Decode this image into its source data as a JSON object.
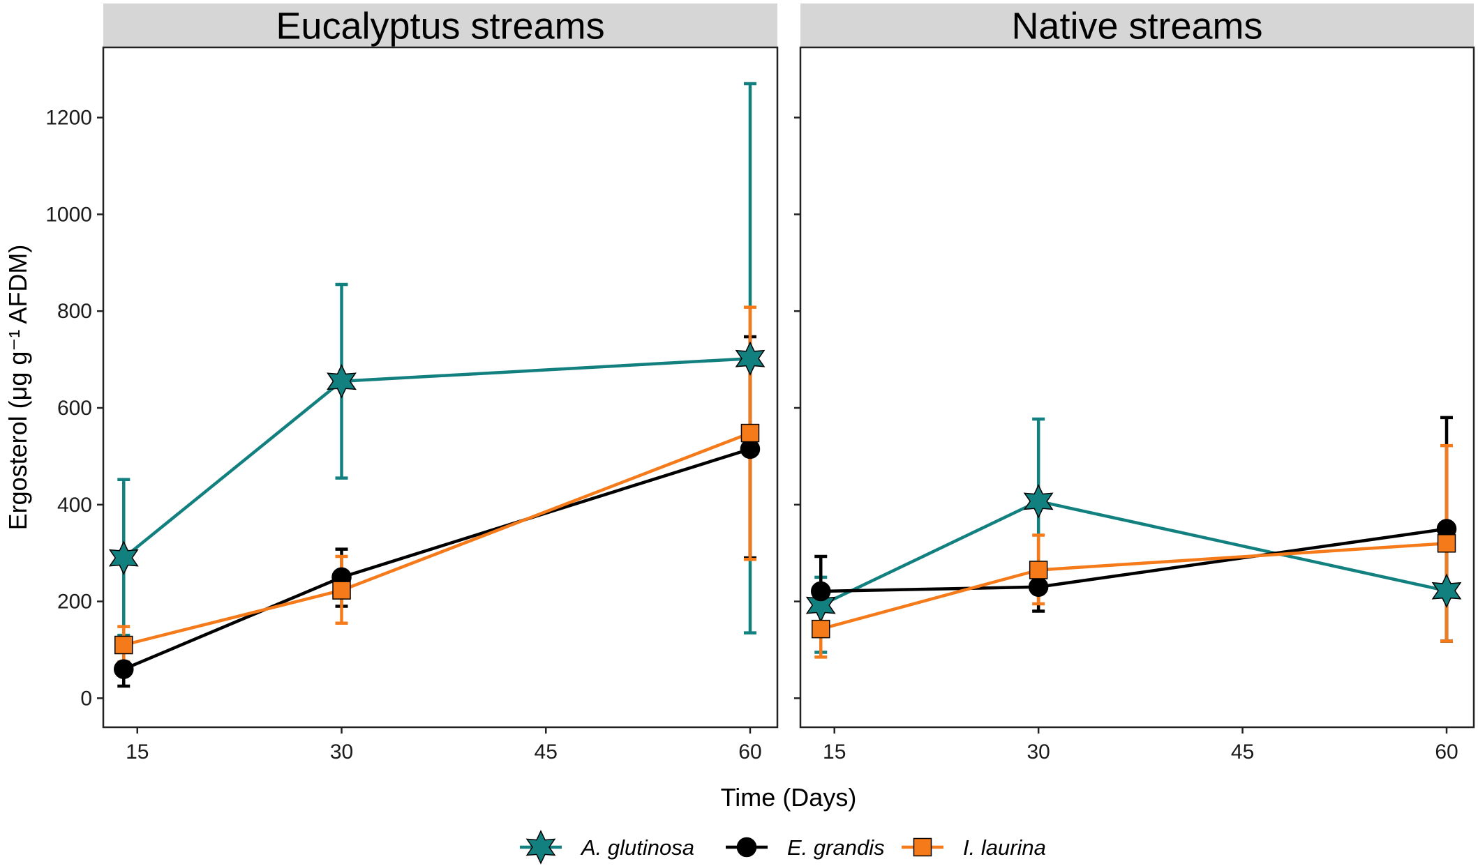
{
  "chart_data": {
    "type": "line",
    "xlabel": "Time (Days)",
    "ylabel": "Ergosterol (μg g⁻¹ AFDM)",
    "xlim": [
      12.5,
      62
    ],
    "ylim": [
      -60,
      1345
    ],
    "x_ticks": [
      15,
      30,
      45,
      60
    ],
    "y_ticks": [
      0,
      200,
      400,
      600,
      800,
      1000,
      1200
    ],
    "legend_position": "bottom",
    "grid": false,
    "colors": {
      "A. glutinosa": "#138080",
      "E. grandis": "#000000",
      "I. laurina": "#f57a1a"
    },
    "panels": [
      {
        "title": "Eucalyptus streams",
        "series": [
          {
            "name": "A. glutinosa",
            "marker": "star",
            "x": [
              14,
              30,
              60
            ],
            "y": [
              290,
              655,
              702
            ],
            "err_low": [
              130,
              455,
              135
            ],
            "err_high": [
              452,
              855,
              1270
            ]
          },
          {
            "name": "E. grandis",
            "marker": "circle",
            "x": [
              14,
              30,
              60
            ],
            "y": [
              60,
              250,
              515
            ],
            "err_low": [
              25,
              190,
              290
            ],
            "err_high": [
              95,
              308,
              747
            ]
          },
          {
            "name": "I. laurina",
            "marker": "square",
            "x": [
              14,
              30,
              60
            ],
            "y": [
              110,
              223,
              548
            ],
            "err_low": [
              75,
              155,
              287
            ],
            "err_high": [
              148,
              293,
              808
            ]
          }
        ]
      },
      {
        "title": "Native streams",
        "series": [
          {
            "name": "A. glutinosa",
            "marker": "star",
            "x": [
              14,
              30,
              60
            ],
            "y": [
              192,
              407,
              222
            ],
            "err_low": [
              95,
              238,
              118
            ],
            "err_high": [
              250,
              577,
              322
            ]
          },
          {
            "name": "E. grandis",
            "marker": "circle",
            "x": [
              14,
              30,
              60
            ],
            "y": [
              221,
              230,
              350
            ],
            "err_low": [
              150,
              180,
              118
            ],
            "err_high": [
              293,
              280,
              580
            ]
          },
          {
            "name": "I. laurina",
            "marker": "square",
            "x": [
              14,
              30,
              60
            ],
            "y": [
              143,
              265,
              320
            ],
            "err_low": [
              85,
              195,
              118
            ],
            "err_high": [
              200,
              337,
              522
            ]
          }
        ]
      }
    ]
  }
}
